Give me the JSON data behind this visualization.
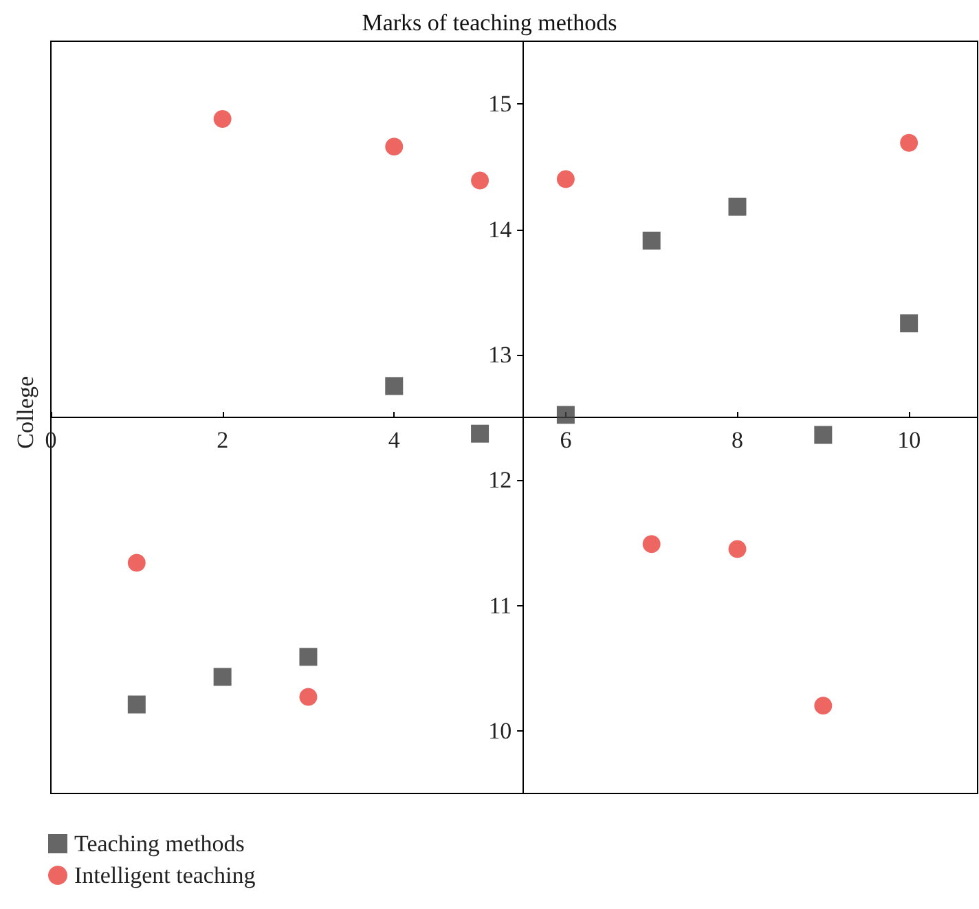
{
  "chart_data": {
    "type": "scatter",
    "title": "Marks of teaching methods",
    "ylabel": "College",
    "x": [
      1,
      2,
      3,
      4,
      5,
      6,
      7,
      8,
      9,
      10
    ],
    "series": [
      {
        "name": "Teaching methods",
        "color": "#404040",
        "marker": "square",
        "values": [
          10.21,
          10.43,
          10.59,
          12.75,
          12.37,
          12.52,
          13.91,
          14.18,
          12.36,
          13.25
        ]
      },
      {
        "name": "Intelligent teaching",
        "color": "#e8403a",
        "marker": "circle",
        "values": [
          11.34,
          14.88,
          10.27,
          14.66,
          14.39,
          14.4,
          11.49,
          11.45,
          10.2,
          14.69
        ]
      }
    ],
    "xlim": [
      0,
      10.8
    ],
    "xticks": [
      0,
      2,
      4,
      6,
      8,
      10
    ],
    "ylim": [
      9.5,
      15.5
    ],
    "yticks": [
      10,
      11,
      12,
      13,
      14,
      15
    ],
    "grid": false,
    "legend": "bottom left"
  }
}
